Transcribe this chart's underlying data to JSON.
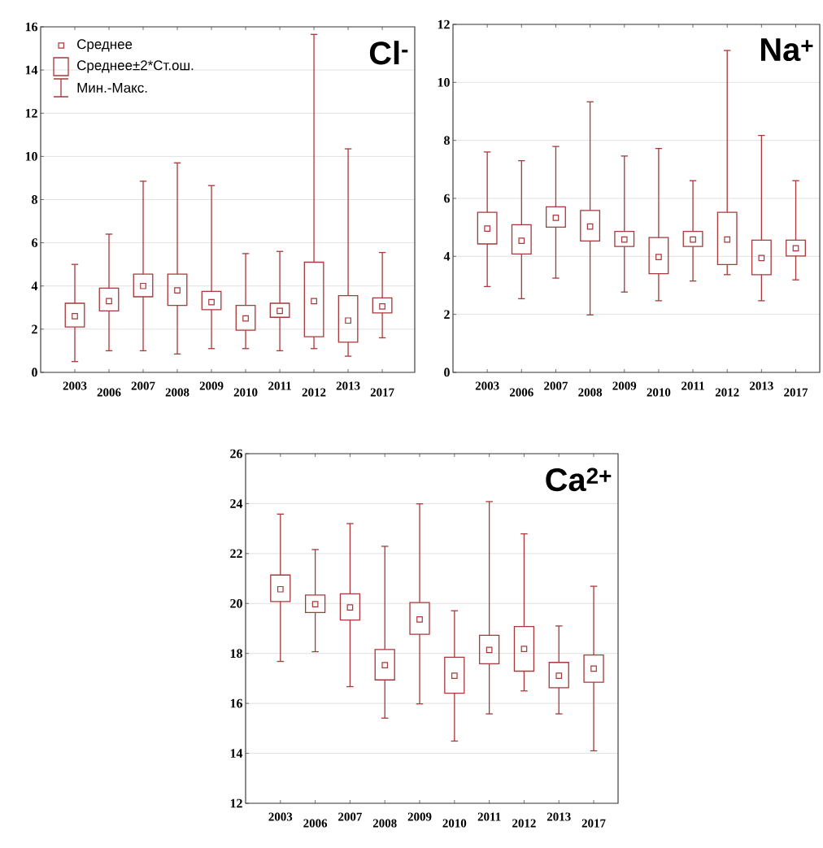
{
  "chart_data": [
    {
      "type": "box",
      "title": "Cl$^{-}$",
      "color": "#a8383a",
      "marker": "square",
      "grid": "y",
      "annotations": [
        "Среднее",
        "Среднее±2*Ст.ош.",
        "Мин.-Макс."
      ],
      "categories": [
        "2003",
        "2006",
        "2007",
        "2008",
        "2009",
        "2010",
        "2011",
        "2012",
        "2013",
        "2017"
      ],
      "ylim": [
        0,
        16
      ],
      "yticks": [
        0,
        2,
        4,
        6,
        8,
        10,
        12,
        14,
        16
      ],
      "boxes": [
        {
          "low": 0.5,
          "q1": 2.1,
          "mean": 2.6,
          "q3": 3.2,
          "high": 5.0
        },
        {
          "low": 1.0,
          "q1": 2.85,
          "mean": 3.3,
          "q3": 3.9,
          "high": 6.4
        },
        {
          "low": 1.0,
          "q1": 3.5,
          "mean": 4.0,
          "q3": 4.55,
          "high": 8.85
        },
        {
          "low": 0.85,
          "q1": 3.1,
          "mean": 3.8,
          "q3": 4.55,
          "high": 9.7
        },
        {
          "low": 1.1,
          "q1": 2.9,
          "mean": 3.25,
          "q3": 3.75,
          "high": 8.65
        },
        {
          "low": 1.1,
          "q1": 1.95,
          "mean": 2.5,
          "q3": 3.1,
          "high": 5.5
        },
        {
          "low": 1.0,
          "q1": 2.55,
          "mean": 2.85,
          "q3": 3.2,
          "high": 5.6
        },
        {
          "low": 1.1,
          "q1": 1.65,
          "mean": 3.3,
          "q3": 5.1,
          "high": 15.65
        },
        {
          "low": 0.75,
          "q1": 1.4,
          "mean": 2.4,
          "q3": 3.55,
          "high": 10.35
        },
        {
          "low": 1.6,
          "q1": 2.75,
          "mean": 3.05,
          "q3": 3.45,
          "high": 5.55
        }
      ]
    },
    {
      "type": "box",
      "title": "Na$^{+}$",
      "color": "#a8383a",
      "marker": "square",
      "grid": "y",
      "categories": [
        "2003",
        "2006",
        "2007",
        "2008",
        "2009",
        "2010",
        "2011",
        "2012",
        "2013",
        "2017"
      ],
      "ylim": [
        0,
        12
      ],
      "yticks": [
        0,
        2,
        4,
        6,
        8,
        10,
        12
      ],
      "boxes": [
        {
          "low": 2.96,
          "q1": 4.43,
          "mean": 4.96,
          "q3": 5.52,
          "high": 7.6
        },
        {
          "low": 2.54,
          "q1": 4.08,
          "mean": 4.54,
          "q3": 5.09,
          "high": 7.3
        },
        {
          "low": 3.25,
          "q1": 5.01,
          "mean": 5.33,
          "q3": 5.71,
          "high": 7.79
        },
        {
          "low": 1.98,
          "q1": 4.53,
          "mean": 5.03,
          "q3": 5.58,
          "high": 9.33
        },
        {
          "low": 2.77,
          "q1": 4.34,
          "mean": 4.58,
          "q3": 4.86,
          "high": 7.46
        },
        {
          "low": 2.47,
          "q1": 3.4,
          "mean": 3.98,
          "q3": 4.65,
          "high": 7.72
        },
        {
          "low": 3.15,
          "q1": 4.34,
          "mean": 4.58,
          "q3": 4.86,
          "high": 6.61
        },
        {
          "low": 3.37,
          "q1": 3.72,
          "mean": 4.58,
          "q3": 5.52,
          "high": 11.1
        },
        {
          "low": 2.47,
          "q1": 3.37,
          "mean": 3.94,
          "q3": 4.56,
          "high": 8.17
        },
        {
          "low": 3.19,
          "q1": 4.01,
          "mean": 4.28,
          "q3": 4.56,
          "high": 6.61
        }
      ]
    },
    {
      "type": "box",
      "title": "Ca$^{2+}$",
      "color": "#a8383a",
      "marker": "square",
      "grid": "y",
      "categories": [
        "2003",
        "2006",
        "2007",
        "2008",
        "2009",
        "2010",
        "2011",
        "2012",
        "2013",
        "2017"
      ],
      "ylim": [
        12,
        26
      ],
      "yticks": [
        12,
        14,
        16,
        18,
        20,
        22,
        24,
        26
      ],
      "boxes": [
        {
          "low": 17.68,
          "q1": 20.08,
          "mean": 20.57,
          "q3": 21.14,
          "high": 23.58
        },
        {
          "low": 18.07,
          "q1": 19.64,
          "mean": 19.97,
          "q3": 20.34,
          "high": 22.16
        },
        {
          "low": 16.67,
          "q1": 19.34,
          "mean": 19.84,
          "q3": 20.39,
          "high": 23.2
        },
        {
          "low": 15.41,
          "q1": 16.94,
          "mean": 17.53,
          "q3": 18.16,
          "high": 22.29
        },
        {
          "low": 15.98,
          "q1": 18.77,
          "mean": 19.36,
          "q3": 20.04,
          "high": 23.99
        },
        {
          "low": 14.49,
          "q1": 16.41,
          "mean": 17.11,
          "q3": 17.85,
          "high": 19.71
        },
        {
          "low": 15.58,
          "q1": 17.59,
          "mean": 18.14,
          "q3": 18.73,
          "high": 24.08
        },
        {
          "low": 16.5,
          "q1": 17.29,
          "mean": 18.18,
          "q3": 19.08,
          "high": 22.79
        },
        {
          "low": 15.58,
          "q1": 16.63,
          "mean": 17.11,
          "q3": 17.64,
          "high": 19.1
        },
        {
          "low": 14.1,
          "q1": 16.85,
          "mean": 17.39,
          "q3": 17.94,
          "high": 20.69
        }
      ]
    }
  ]
}
